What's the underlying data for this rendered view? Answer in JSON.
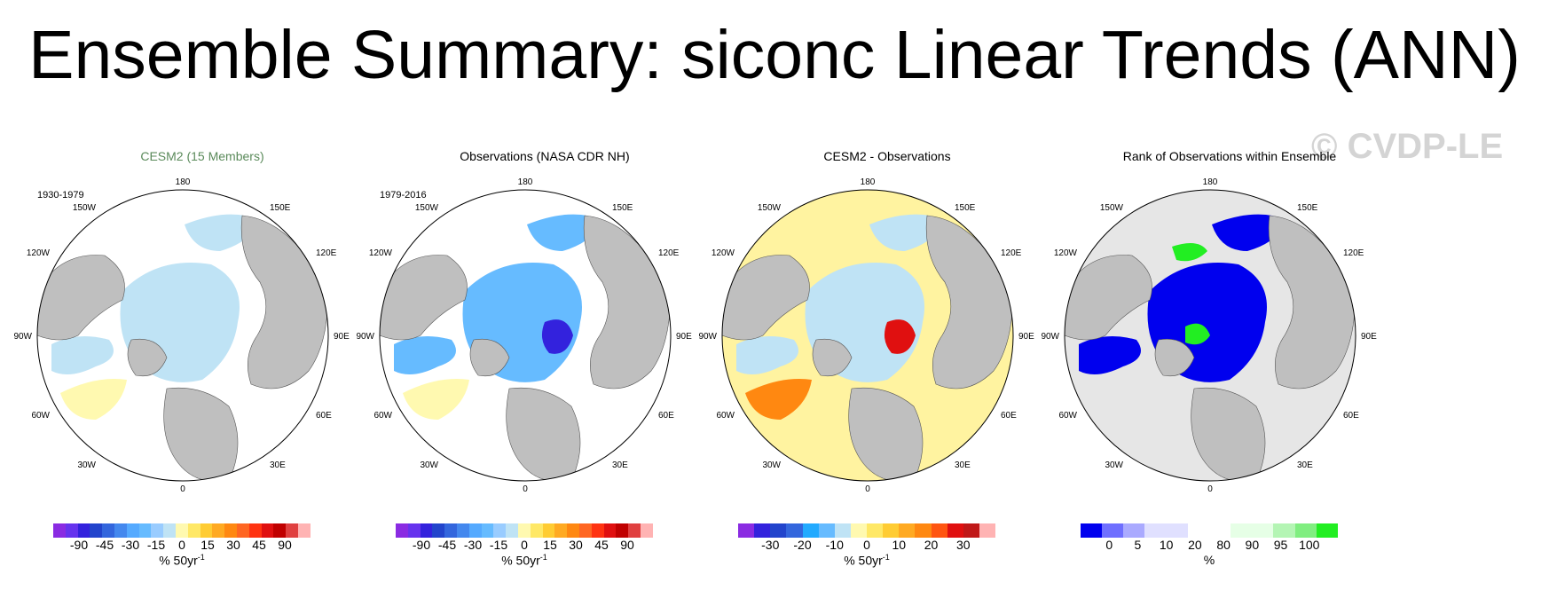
{
  "title": "Ensemble Summary: siconc Linear Trends (ANN)",
  "watermark": "© CVDP-LE",
  "longitude_labels": {
    "top": "180",
    "bottom": "0",
    "left_top": "150W",
    "right_top": "150E",
    "left_upper": "120W",
    "right_upper": "120E",
    "left_mid": "90W",
    "right_mid": "90E",
    "left_lower": "60W",
    "right_lower": "60E",
    "left_bottom": "30W",
    "right_bottom": "30E"
  },
  "panels": [
    {
      "title": "CESM2 (15 Members)",
      "title_color": "#5a8a5a",
      "period": "1930-1979",
      "colorbar": [
        "#8a2be2",
        "#6633ee",
        "#3322dd",
        "#2244cc",
        "#3366dd",
        "#4488ee",
        "#55aaff",
        "#66bbff",
        "#99ccff",
        "#bfe3f5",
        "#fff9b0",
        "#ffe866",
        "#ffcc33",
        "#ffaa22",
        "#ff8811",
        "#ff6622",
        "#ff3311",
        "#e01010",
        "#c00000",
        "#e04040",
        "#ffb3b3"
      ],
      "ticks": [
        "-90",
        "-45",
        "-30",
        "-15",
        "0",
        "15",
        "30",
        "45",
        "90"
      ],
      "unit": "% 50yr",
      "unit_sup": "-1"
    },
    {
      "title": "Observations (NASA CDR NH)",
      "title_color": "#000000",
      "period": "1979-2016",
      "colorbar": [
        "#8a2be2",
        "#6633ee",
        "#3322dd",
        "#2244cc",
        "#3366dd",
        "#4488ee",
        "#55aaff",
        "#66bbff",
        "#99ccff",
        "#bfe3f5",
        "#fff9b0",
        "#ffe866",
        "#ffcc33",
        "#ffaa22",
        "#ff8811",
        "#ff6622",
        "#ff3311",
        "#e01010",
        "#c00000",
        "#e04040",
        "#ffb3b3"
      ],
      "ticks": [
        "-90",
        "-45",
        "-30",
        "-15",
        "0",
        "15",
        "30",
        "45",
        "90"
      ],
      "unit": "% 50yr",
      "unit_sup": "-1"
    },
    {
      "title": "CESM2 - Observations",
      "title_color": "#000000",
      "period": "",
      "colorbar": [
        "#8a2be2",
        "#3322dd",
        "#2244cc",
        "#3366dd",
        "#22aaff",
        "#66bbff",
        "#bfe3f5",
        "#fff9b0",
        "#ffe866",
        "#ffcc33",
        "#ffaa22",
        "#ff8811",
        "#ff5511",
        "#e01010",
        "#c01818",
        "#ffb3b3"
      ],
      "ticks": [
        "-30",
        "-20",
        "-10",
        "0",
        "10",
        "20",
        "30"
      ],
      "unit": "% 50yr",
      "unit_sup": "-1"
    },
    {
      "title": "Rank of Observations within Ensemble",
      "title_color": "#000000",
      "period": "",
      "colorbar": [
        "#0000ee",
        "#6f6fff",
        "#aaaaff",
        "#e0e0ff",
        "#e0e0ff",
        "#ffffff",
        "#ffffff",
        "#e6ffe6",
        "#e6ffe6",
        "#b4f5b4",
        "#80ee80",
        "#22ee22"
      ],
      "ticks": [
        "0",
        "5",
        "10",
        "20",
        "80",
        "90",
        "95",
        "100"
      ],
      "unit": "%",
      "unit_sup": ""
    }
  ]
}
